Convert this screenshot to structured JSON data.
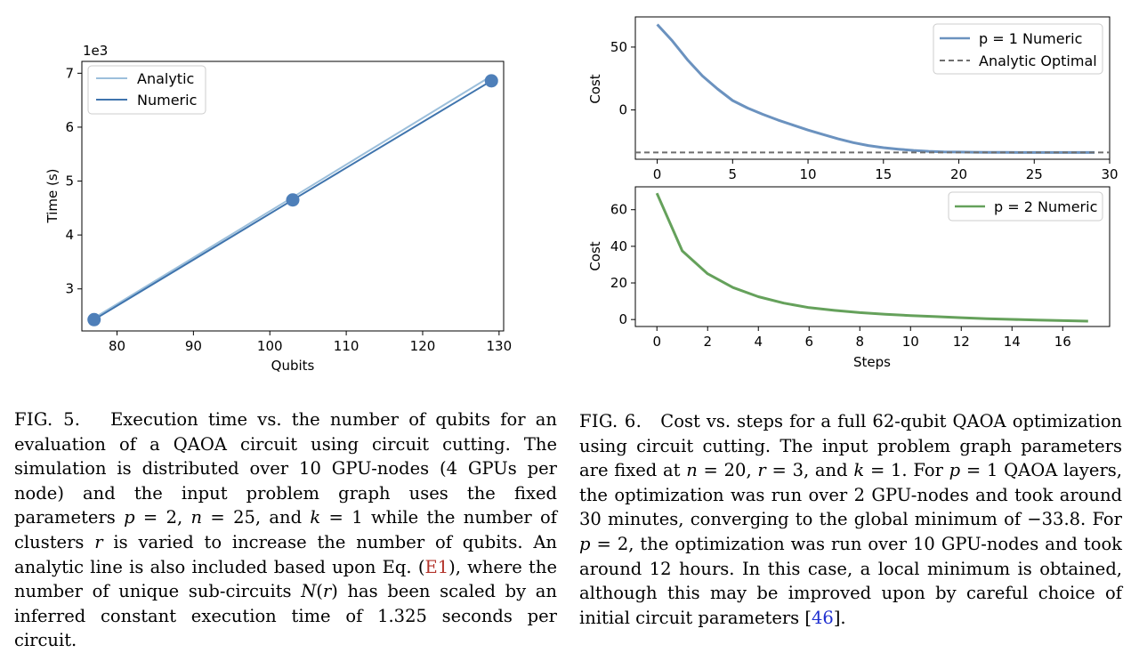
{
  "figure5": {
    "chart_data": {
      "type": "line",
      "xlabel": "Qubits",
      "ylabel": "Time (s)",
      "y_offset_label": "1e3",
      "xlim": [
        75.4,
        130.6
      ],
      "ylim": [
        2.22,
        7.22
      ],
      "x_ticks": [
        "80",
        "90",
        "100",
        "110",
        "120",
        "130"
      ],
      "y_ticks": [
        "3",
        "4",
        "5",
        "6",
        "7"
      ],
      "legend_position": "upper-left",
      "series": [
        {
          "name": "Analytic",
          "x": [
            77,
            103,
            129
          ],
          "y": [
            2.46,
            4.7,
            6.95
          ],
          "color": "#9cbfdb",
          "style": "solid"
        },
        {
          "name": "Numeric",
          "x": [
            77,
            103,
            129
          ],
          "y": [
            2.43,
            4.65,
            6.86
          ],
          "color": "#3f74ad",
          "style": "solid",
          "markers": true,
          "marker_color": "#4e7fb9"
        }
      ]
    }
  },
  "figure6": {
    "chart_data": [
      {
        "type": "line",
        "ylabel": "Cost",
        "xlim": [
          -1.45,
          30.0
        ],
        "ylim": [
          -39.2,
          74.0
        ],
        "x_ticks": [
          "0",
          "5",
          "10",
          "15",
          "20",
          "25",
          "30"
        ],
        "y_ticks": [
          "50",
          "0"
        ],
        "legend_position": "upper-right",
        "series": [
          {
            "name": "p = 1 Numeric",
            "color": "#6b92bf",
            "style": "solid",
            "x": [
              0,
              1,
              2,
              3,
              4,
              5,
              6,
              7,
              8,
              9,
              10,
              11,
              12,
              13,
              14,
              15,
              16,
              17,
              18,
              19,
              20,
              21,
              22,
              23,
              24,
              25,
              26,
              27,
              28,
              29
            ],
            "y": [
              68,
              55,
              40,
              27,
              16.7,
              7.5,
              1.5,
              -3.5,
              -8,
              -12,
              -16,
              -19.5,
              -23,
              -26,
              -28.3,
              -30,
              -31.2,
              -32.2,
              -32.9,
              -33.3,
              -33.5,
              -33.6,
              -33.7,
              -33.7,
              -33.8,
              -33.8,
              -33.8,
              -33.8,
              -33.8,
              -33.8
            ]
          },
          {
            "name": "Analytic Optimal",
            "color": "#6e6e6e",
            "style": "dashed",
            "y_constant": -33.8
          }
        ]
      },
      {
        "type": "line",
        "xlabel": "Steps",
        "ylabel": "Cost",
        "xlim": [
          -0.85,
          17.85
        ],
        "ylim": [
          -3.8,
          72.5
        ],
        "x_ticks": [
          "0",
          "2",
          "4",
          "6",
          "8",
          "10",
          "12",
          "14",
          "16"
        ],
        "y_ticks": [
          "60",
          "40",
          "20",
          "0"
        ],
        "legend_position": "upper-right",
        "series": [
          {
            "name": "p = 2 Numeric",
            "color": "#65a15b",
            "style": "solid",
            "x": [
              0,
              1,
              2,
              3,
              4,
              5,
              6,
              7,
              8,
              9,
              10,
              11,
              12,
              13,
              14,
              15,
              16,
              17
            ],
            "y": [
              69,
              37.5,
              25,
              17.5,
              12.5,
              9,
              6.5,
              5,
              3.8,
              2.9,
              2.2,
              1.6,
              1,
              0.5,
              0.1,
              -0.3,
              -0.6,
              -0.9
            ]
          }
        ]
      }
    ]
  },
  "caption5": {
    "label": "FIG. 5.",
    "text": "Execution time vs. the number of qubits for an evaluation of a QAOA circuit using circuit cutting. The simulation is distributed over 10 GPU-nodes (4 GPUs per node) and the input problem graph uses the fixed parameters p = 2, n = 25, and k = 1 while the number of clusters r is varied to increase the number of qubits. An analytic line is also included based upon Eq. (E1), where the number of unique sub-circuits N(r) has been scaled by an inferred constant execution time of 1.325 seconds per circuit.",
    "ref_equation": "E1"
  },
  "caption6": {
    "label": "FIG. 6.",
    "text": "Cost vs. steps for a full 62-qubit QAOA optimization using circuit cutting. The input problem graph parameters are fixed at n = 20, r = 3, and k = 1. For p = 1 QAOA layers, the optimization was run over 2 GPU-nodes and took around 30 minutes, converging to the global minimum of −33.8. For p = 2, the optimization was run over 10 GPU-nodes and took around 12 hours. In this case, a local minimum is obtained, although this may be improved upon by careful choice of initial circuit parameters [46].",
    "ref_citation": "46"
  }
}
